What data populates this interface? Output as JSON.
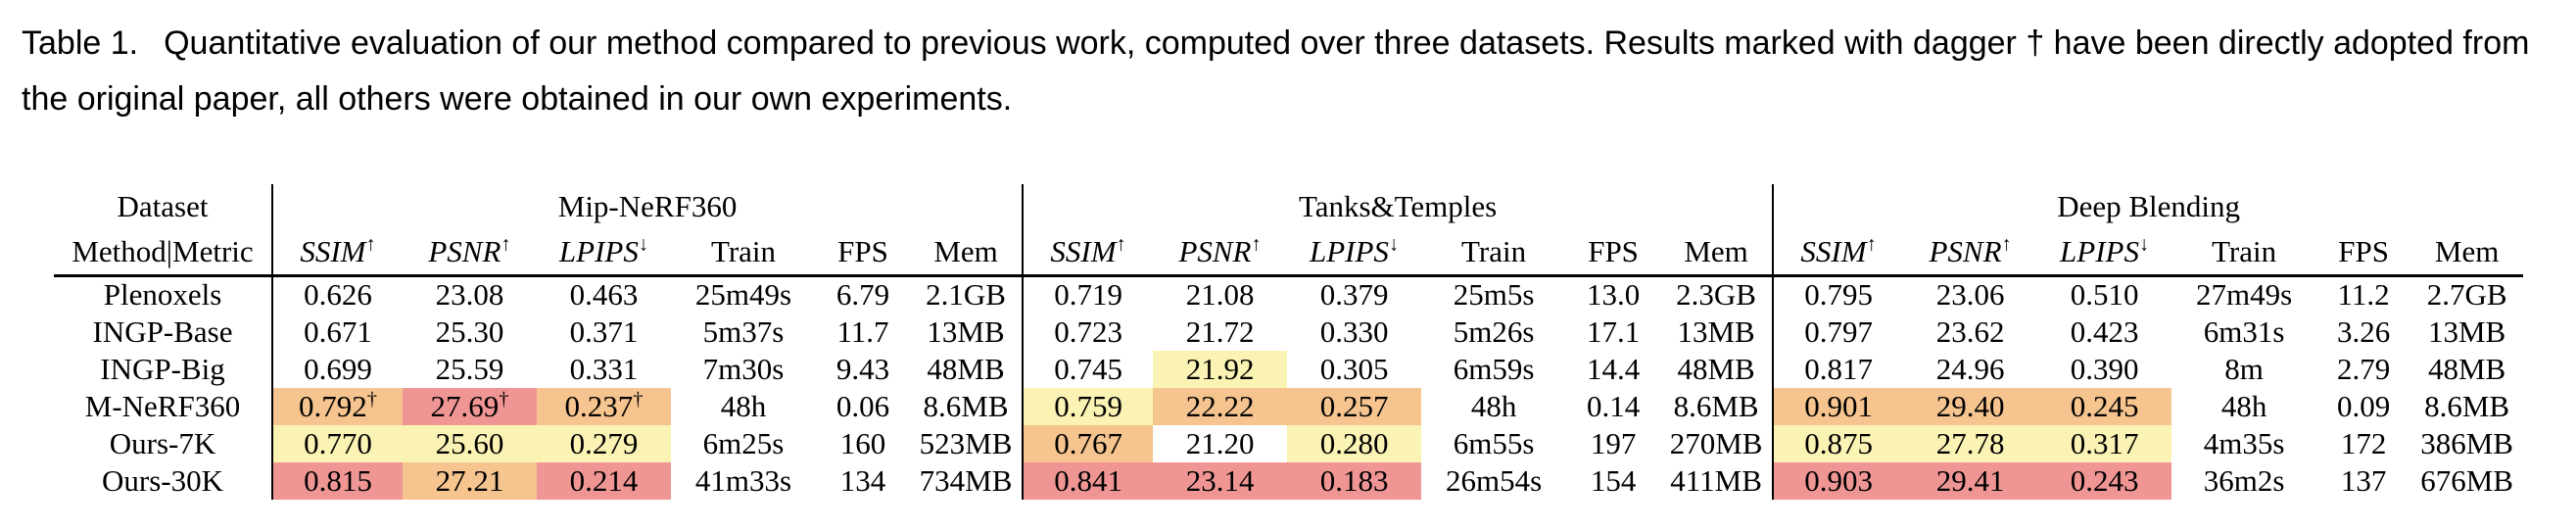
{
  "caption": {
    "label": "Table 1.",
    "text": "Quantitative evaluation of our method compared to previous work, computed over three datasets. Results marked with dagger † have been directly adopted from the original paper, all others were obtained in our own experiments."
  },
  "colors": {
    "best": "#EF9695",
    "second": "#F5C48F",
    "third": "#FBF3B4"
  },
  "table": {
    "corner": {
      "top": "Dataset",
      "bottom": "Method|Metric"
    },
    "sections": [
      "Mip-NeRF360",
      "Tanks&Temples",
      "Deep Blending"
    ],
    "metric_headers": [
      {
        "label": "SSIM",
        "arrow": "↑",
        "italic": true
      },
      {
        "label": "PSNR",
        "arrow": "↑",
        "italic": true
      },
      {
        "label": "LPIPS",
        "arrow": "↓",
        "italic": true
      },
      {
        "label": "Train",
        "arrow": "",
        "italic": false
      },
      {
        "label": "FPS",
        "arrow": "",
        "italic": false
      },
      {
        "label": "Mem",
        "arrow": "",
        "italic": false
      }
    ],
    "rows": [
      {
        "method": "Plenoxels",
        "cells": [
          {
            "v": "0.626"
          },
          {
            "v": "23.08"
          },
          {
            "v": "0.463"
          },
          {
            "v": "25m49s"
          },
          {
            "v": "6.79"
          },
          {
            "v": "2.1GB"
          },
          {
            "v": "0.719"
          },
          {
            "v": "21.08"
          },
          {
            "v": "0.379"
          },
          {
            "v": "25m5s"
          },
          {
            "v": "13.0"
          },
          {
            "v": "2.3GB"
          },
          {
            "v": "0.795"
          },
          {
            "v": "23.06"
          },
          {
            "v": "0.510"
          },
          {
            "v": "27m49s"
          },
          {
            "v": "11.2"
          },
          {
            "v": "2.7GB"
          }
        ]
      },
      {
        "method": "INGP-Base",
        "cells": [
          {
            "v": "0.671"
          },
          {
            "v": "25.30"
          },
          {
            "v": "0.371"
          },
          {
            "v": "5m37s"
          },
          {
            "v": "11.7"
          },
          {
            "v": "13MB"
          },
          {
            "v": "0.723"
          },
          {
            "v": "21.72"
          },
          {
            "v": "0.330"
          },
          {
            "v": "5m26s"
          },
          {
            "v": "17.1"
          },
          {
            "v": "13MB"
          },
          {
            "v": "0.797"
          },
          {
            "v": "23.62"
          },
          {
            "v": "0.423"
          },
          {
            "v": "6m31s"
          },
          {
            "v": "3.26"
          },
          {
            "v": "13MB"
          }
        ]
      },
      {
        "method": "INGP-Big",
        "cells": [
          {
            "v": "0.699"
          },
          {
            "v": "25.59"
          },
          {
            "v": "0.331"
          },
          {
            "v": "7m30s"
          },
          {
            "v": "9.43"
          },
          {
            "v": "48MB"
          },
          {
            "v": "0.745"
          },
          {
            "v": "21.92",
            "hl": "third"
          },
          {
            "v": "0.305"
          },
          {
            "v": "6m59s"
          },
          {
            "v": "14.4"
          },
          {
            "v": "48MB"
          },
          {
            "v": "0.817"
          },
          {
            "v": "24.96"
          },
          {
            "v": "0.390"
          },
          {
            "v": "8m"
          },
          {
            "v": "2.79"
          },
          {
            "v": "48MB"
          }
        ]
      },
      {
        "method": "M-NeRF360",
        "cells": [
          {
            "v": "0.792",
            "sup": "†",
            "hl": "second"
          },
          {
            "v": "27.69",
            "sup": "†",
            "hl": "best"
          },
          {
            "v": "0.237",
            "sup": "†",
            "hl": "second"
          },
          {
            "v": "48h"
          },
          {
            "v": "0.06"
          },
          {
            "v": "8.6MB"
          },
          {
            "v": "0.759",
            "hl": "third"
          },
          {
            "v": "22.22",
            "hl": "second"
          },
          {
            "v": "0.257",
            "hl": "second"
          },
          {
            "v": "48h"
          },
          {
            "v": "0.14"
          },
          {
            "v": "8.6MB"
          },
          {
            "v": "0.901",
            "hl": "second"
          },
          {
            "v": "29.40",
            "hl": "second"
          },
          {
            "v": "0.245",
            "hl": "second"
          },
          {
            "v": "48h"
          },
          {
            "v": "0.09"
          },
          {
            "v": "8.6MB"
          }
        ]
      },
      {
        "method": "Ours-7K",
        "cells": [
          {
            "v": "0.770",
            "hl": "third"
          },
          {
            "v": "25.60",
            "hl": "third"
          },
          {
            "v": "0.279",
            "hl": "third"
          },
          {
            "v": "6m25s"
          },
          {
            "v": "160"
          },
          {
            "v": "523MB"
          },
          {
            "v": "0.767",
            "hl": "second"
          },
          {
            "v": "21.20"
          },
          {
            "v": "0.280",
            "hl": "third"
          },
          {
            "v": "6m55s"
          },
          {
            "v": "197"
          },
          {
            "v": "270MB"
          },
          {
            "v": "0.875",
            "hl": "third"
          },
          {
            "v": "27.78",
            "hl": "third"
          },
          {
            "v": "0.317",
            "hl": "third"
          },
          {
            "v": "4m35s"
          },
          {
            "v": "172"
          },
          {
            "v": "386MB"
          }
        ]
      },
      {
        "method": "Ours-30K",
        "cells": [
          {
            "v": "0.815",
            "hl": "best"
          },
          {
            "v": "27.21",
            "hl": "second"
          },
          {
            "v": "0.214",
            "hl": "best"
          },
          {
            "v": "41m33s"
          },
          {
            "v": "134"
          },
          {
            "v": "734MB"
          },
          {
            "v": "0.841",
            "hl": "best"
          },
          {
            "v": "23.14",
            "hl": "best"
          },
          {
            "v": "0.183",
            "hl": "best"
          },
          {
            "v": "26m54s"
          },
          {
            "v": "154"
          },
          {
            "v": "411MB"
          },
          {
            "v": "0.903",
            "hl": "best"
          },
          {
            "v": "29.41",
            "hl": "best"
          },
          {
            "v": "0.243",
            "hl": "best"
          },
          {
            "v": "36m2s"
          },
          {
            "v": "137"
          },
          {
            "v": "676MB"
          }
        ]
      }
    ]
  }
}
